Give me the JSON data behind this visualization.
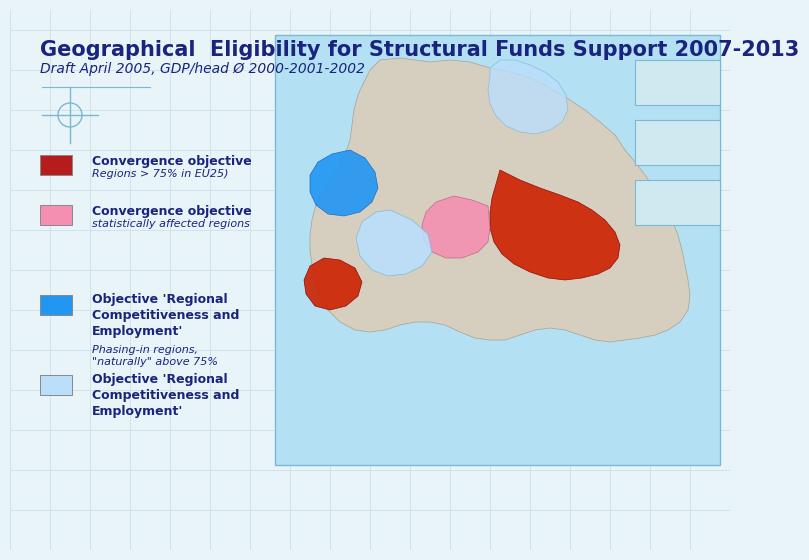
{
  "title": "Geographical  Eligibility for Structural Funds Support 2007-2013",
  "subtitle": "Draft April 2005, GDP/head Ø 2000-2001-2002",
  "background_color": "#e8f4f8",
  "grid_color": "#c5dce8",
  "title_color": "#1a237e",
  "subtitle_color": "#1a237e",
  "title_fontsize": 15,
  "subtitle_fontsize": 10,
  "legend_items": [
    {
      "color": "#b71c1c",
      "label_bold": "Convergence objective",
      "label_italic": "Regions > 75% in EU25)"
    },
    {
      "color": "#f48fb1",
      "label_bold": "Convergence objective",
      "label_italic": "statistically affected regions"
    },
    {
      "color": "#2196f3",
      "label_bold": "Objective 'Regional\nCompetitiveness and\nEmployment'",
      "label_italic": "Phasing-in regions,\n\"naturally\" above 75%"
    },
    {
      "color": "#bbdefb",
      "label_bold": "Objective 'Regional\nCompetitiveness and\nEmployment'",
      "label_italic": ""
    }
  ],
  "map_color": "#b3e0f2",
  "map_border_color": "#7ab8d4",
  "inset_color": "#d0e8f0",
  "inset_border": "#7ab8d4"
}
